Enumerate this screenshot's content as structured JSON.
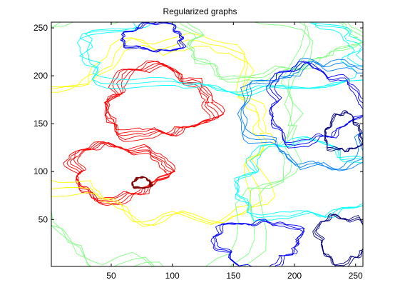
{
  "chart_data": {
    "type": "contour",
    "title": "Regularized graphs",
    "xlabel": "",
    "ylabel": "",
    "xlim": [
      1,
      256
    ],
    "ylim": [
      1,
      256
    ],
    "x_ticks": [
      50,
      100,
      150,
      200,
      250
    ],
    "y_ticks": [
      50,
      100,
      150,
      200,
      250
    ],
    "grid": false,
    "legend": "none",
    "colormap": "jet",
    "background": "#ffffff",
    "axes_color": "#000000",
    "level_colors": [
      "#00007f",
      "#0000ff",
      "#007fff",
      "#00ffff",
      "#7fff7f",
      "#ffff00",
      "#ff7f00",
      "#ff0000",
      "#7f0000"
    ],
    "regions": [
      {
        "level": 8,
        "shape": "blob",
        "center": [
          55,
          100
        ],
        "radii": [
          40,
          30
        ]
      },
      {
        "level": 8,
        "shape": "blob",
        "center": [
          88,
          172
        ],
        "radii": [
          45,
          38
        ]
      },
      {
        "level": 9,
        "shape": "blob",
        "center": [
          75,
          88
        ],
        "radii": [
          8,
          6
        ]
      },
      {
        "level": 6,
        "shape": "blob",
        "center": [
          85,
          140
        ],
        "radii": [
          100,
          95
        ]
      },
      {
        "level": 5,
        "shape": "blob",
        "center": [
          78,
          148
        ],
        "radii": [
          135,
          150
        ]
      },
      {
        "level": 5,
        "shape": "blob",
        "center": [
          175,
          240
        ],
        "radii": [
          70,
          40
        ]
      },
      {
        "level": 4,
        "shape": "blob",
        "center": [
          145,
          230
        ],
        "radii": [
          115,
          50
        ]
      },
      {
        "level": 4,
        "shape": "blob",
        "center": [
          210,
          90
        ],
        "radii": [
          60,
          40
        ]
      },
      {
        "level": 3,
        "shape": "blob",
        "center": [
          215,
          160
        ],
        "radii": [
          55,
          55
        ]
      },
      {
        "level": 2,
        "shape": "blob",
        "center": [
          215,
          170
        ],
        "radii": [
          38,
          40
        ]
      },
      {
        "level": 2,
        "shape": "blob",
        "center": [
          170,
          25
        ],
        "radii": [
          35,
          25
        ]
      },
      {
        "level": 2,
        "shape": "blob",
        "center": [
          85,
          240
        ],
        "radii": [
          25,
          15
        ]
      },
      {
        "level": 1,
        "shape": "blob",
        "center": [
          240,
          30
        ],
        "radii": [
          22,
          25
        ]
      },
      {
        "level": 1,
        "shape": "blob",
        "center": [
          240,
          140
        ],
        "radii": [
          15,
          20
        ]
      }
    ]
  }
}
